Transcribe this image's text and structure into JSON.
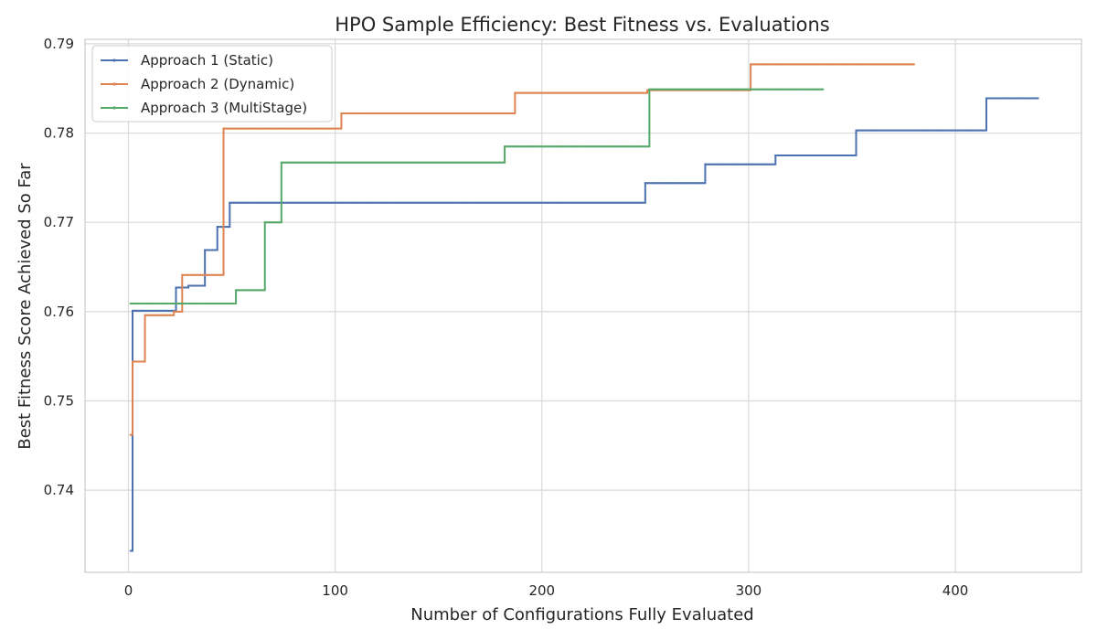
{
  "chart_data": {
    "type": "line",
    "title": "HPO Sample Efficiency: Best Fitness vs. Evaluations",
    "xlabel": "Number of Configurations Fully Evaluated",
    "ylabel": "Best Fitness Score Achieved So Far",
    "xlim": [
      -21,
      461
    ],
    "ylim": [
      0.7308,
      0.7905
    ],
    "xticks": [
      0,
      100,
      200,
      300,
      400
    ],
    "xtick_labels": [
      "0",
      "100",
      "200",
      "300",
      "400"
    ],
    "yticks": [
      0.74,
      0.75,
      0.76,
      0.77,
      0.78,
      0.79
    ],
    "ytick_labels": [
      "0.74",
      "0.75",
      "0.76",
      "0.77",
      "0.78",
      "0.79"
    ],
    "grid": true,
    "legend_position": "top-left",
    "step_style": "post",
    "series": [
      {
        "name": "Approach 1 (Static)",
        "color": "#4c72b0",
        "x_end": 440,
        "points": [
          [
            1,
            0.7332
          ],
          [
            2,
            0.7601
          ],
          [
            23,
            0.7627
          ],
          [
            29,
            0.7629
          ],
          [
            37,
            0.7669
          ],
          [
            43,
            0.7695
          ],
          [
            49,
            0.7722
          ],
          [
            250,
            0.7744
          ],
          [
            279,
            0.7765
          ],
          [
            313,
            0.7775
          ],
          [
            352,
            0.7803
          ],
          [
            415,
            0.7839
          ]
        ]
      },
      {
        "name": "Approach 2 (Dynamic)",
        "color": "#dd8452",
        "x_end": 380,
        "points": [
          [
            1,
            0.7462
          ],
          [
            2,
            0.7544
          ],
          [
            8,
            0.7596
          ],
          [
            22,
            0.76
          ],
          [
            26,
            0.7641
          ],
          [
            46,
            0.7805
          ],
          [
            103,
            0.7822
          ],
          [
            187,
            0.7845
          ],
          [
            251,
            0.7848
          ],
          [
            301,
            0.7877
          ]
        ]
      },
      {
        "name": "Approach 3 (MultiStage)",
        "color": "#55a868",
        "x_end": 336,
        "points": [
          [
            1,
            0.7609
          ],
          [
            52,
            0.7624
          ],
          [
            66,
            0.77
          ],
          [
            74,
            0.7767
          ],
          [
            182,
            0.7785
          ],
          [
            252,
            0.7849
          ]
        ]
      }
    ]
  }
}
